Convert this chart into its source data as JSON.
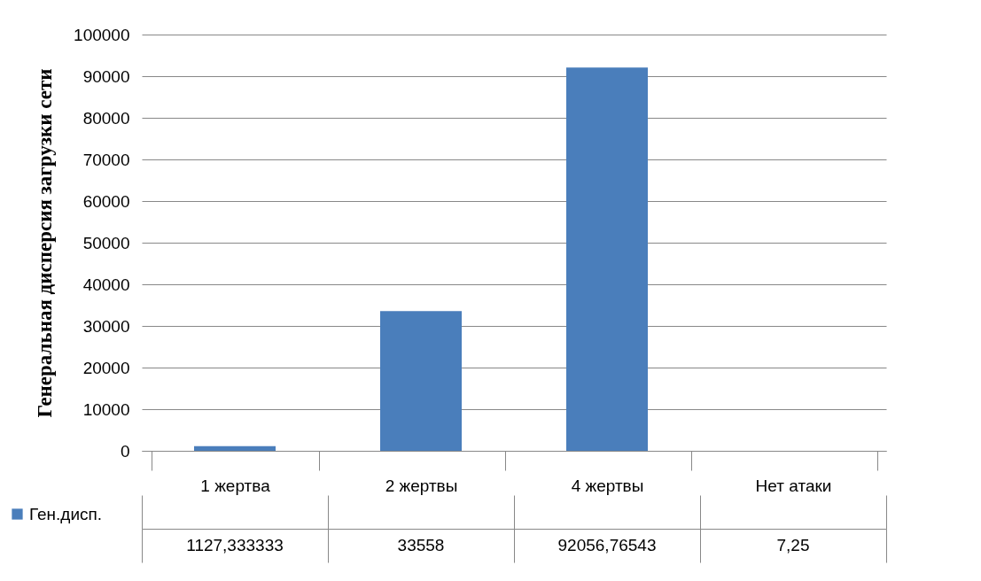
{
  "chart_data": {
    "type": "bar",
    "ylabel": "Генеральная  дисперсия загрузки сети",
    "categories": [
      "1 жертва",
      "2 жертвы",
      "4 жертвы",
      "Нет атаки"
    ],
    "series": [
      {
        "name": "Ген.дисп.",
        "color": "#4a7ebb",
        "values": [
          1127.333333,
          33558,
          92056.76543,
          7.25
        ],
        "value_labels": [
          "1127,333333",
          "33558",
          "92056,76543",
          "7,25"
        ]
      }
    ],
    "ylim": [
      0,
      100000
    ],
    "yticks": [
      0,
      10000,
      20000,
      30000,
      40000,
      50000,
      60000,
      70000,
      80000,
      90000,
      100000
    ],
    "grid": "y",
    "legend": "bottom left"
  }
}
